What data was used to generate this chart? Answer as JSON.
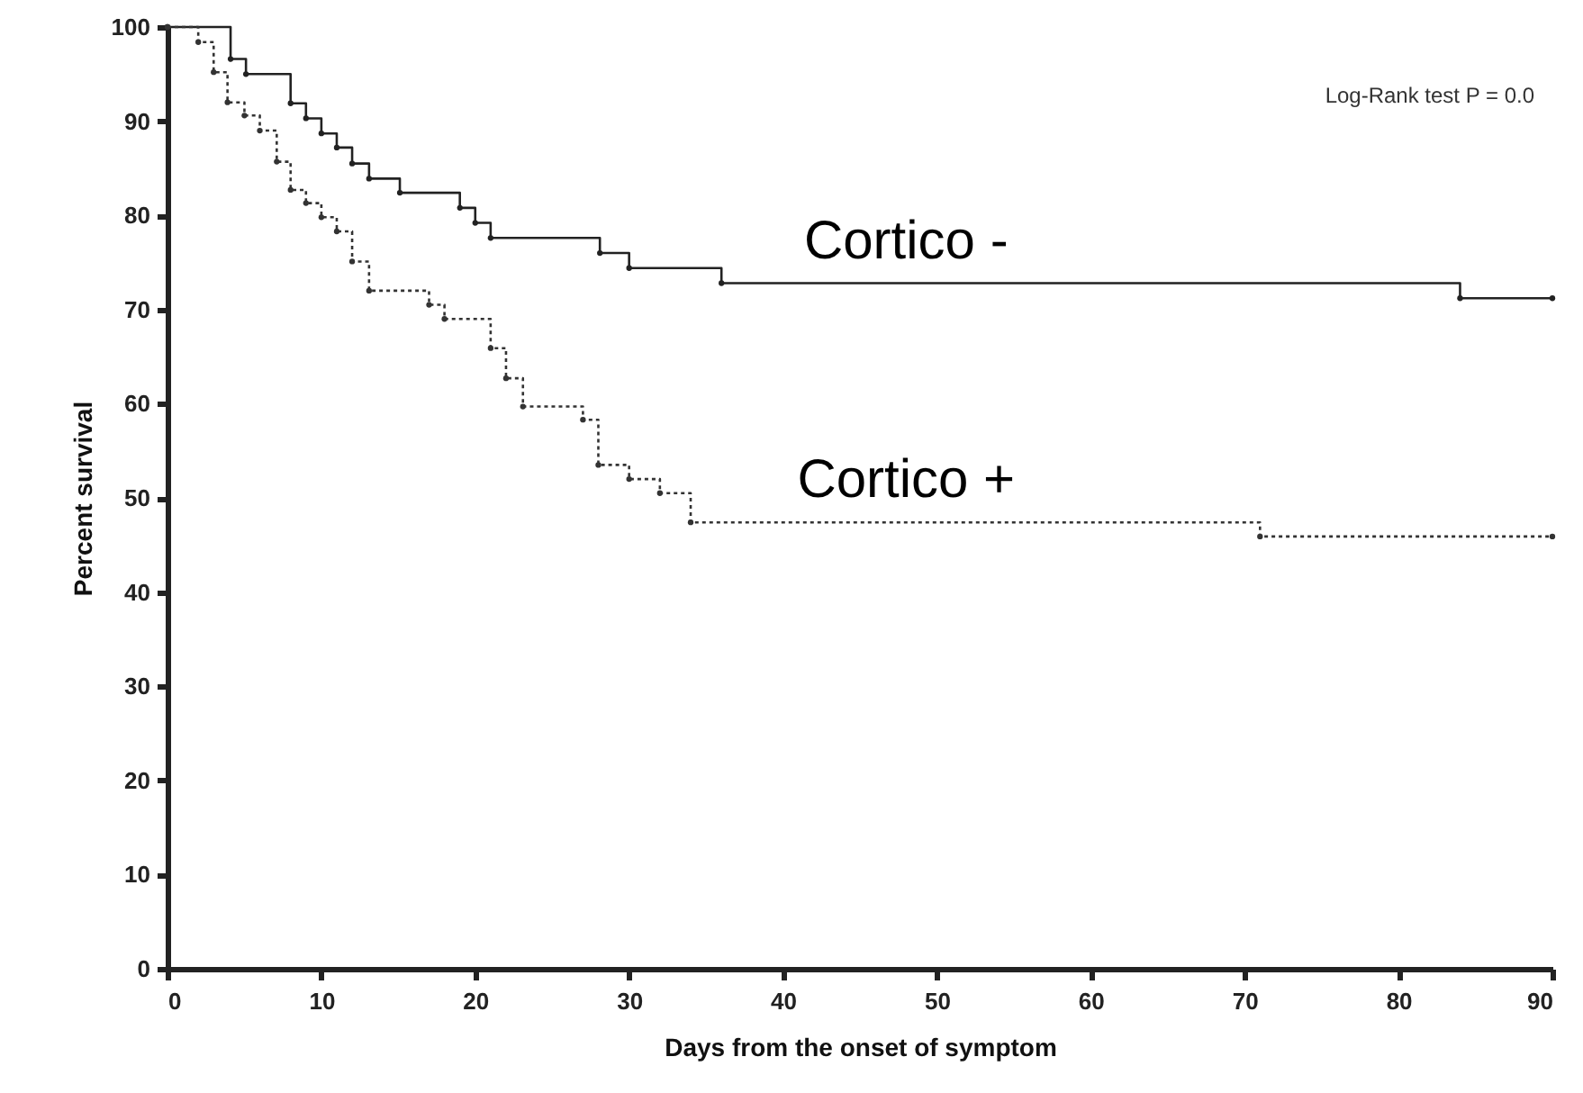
{
  "chart_data": {
    "type": "step",
    "xlabel": "Days from the onset of symptom",
    "ylabel": "Percent survival",
    "xlim": [
      0,
      90
    ],
    "ylim": [
      0,
      100
    ],
    "xticks": [
      0,
      10,
      20,
      30,
      40,
      50,
      60,
      70,
      80,
      90
    ],
    "yticks": [
      0,
      10,
      20,
      30,
      40,
      50,
      60,
      70,
      80,
      90,
      100
    ],
    "grid": false,
    "marker": "circle",
    "annotations": [
      "Log-Rank test P = 0.0"
    ],
    "series": [
      {
        "name": "Cortico -",
        "color": "#222222",
        "line_style": "solid",
        "x": [
          0,
          4.1,
          5.1,
          8.0,
          9.0,
          10.0,
          11.0,
          12.0,
          13.1,
          15.1,
          19.0,
          20.0,
          21.0,
          28.1,
          30.0,
          36.0,
          84.0,
          90
        ],
        "values": [
          100,
          96.6,
          95.0,
          91.9,
          90.3,
          88.7,
          87.2,
          85.5,
          83.9,
          82.4,
          80.8,
          79.2,
          77.6,
          76.0,
          74.4,
          72.8,
          71.2,
          71.2
        ]
      },
      {
        "name": "Cortico +",
        "color": "#333333",
        "line_style": "dotted",
        "x": [
          0,
          2.0,
          3.0,
          3.9,
          5.0,
          6.0,
          7.1,
          8.0,
          9.0,
          10.0,
          11.0,
          12.0,
          13.1,
          17.0,
          18.0,
          21.0,
          22.0,
          23.1,
          27.0,
          28.0,
          30.0,
          32.0,
          34.0,
          71.0,
          90
        ],
        "values": [
          100,
          98.4,
          95.2,
          92.0,
          90.6,
          89.0,
          85.7,
          82.7,
          81.3,
          79.8,
          78.3,
          75.1,
          72.0,
          70.5,
          69.0,
          65.9,
          62.7,
          59.7,
          58.3,
          53.5,
          52.0,
          50.5,
          47.4,
          45.9,
          45.9
        ]
      }
    ]
  }
}
